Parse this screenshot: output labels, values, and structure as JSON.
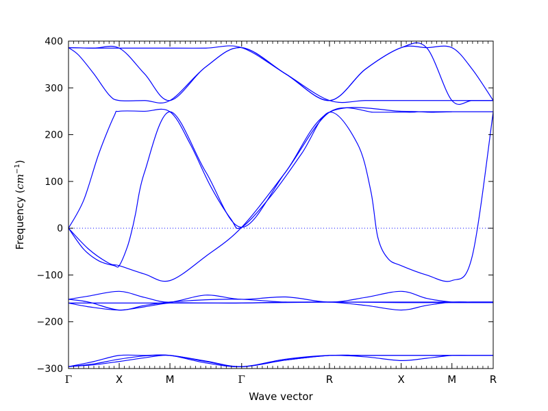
{
  "chart_data": {
    "type": "line",
    "xlabel": "Wave vector",
    "ylabel": "Frequency (",
    "ylabel_unit": "cm",
    "ylabel_exp": "−1",
    "ylabel_close": ")",
    "ylim": [
      -300,
      400
    ],
    "yticks": [
      400,
      300,
      200,
      100,
      0,
      -100,
      -200,
      -300
    ],
    "ytick_labels": [
      "400",
      "300",
      "200",
      "100",
      "0",
      "−100",
      "−200",
      "−300"
    ],
    "high_symmetry_points": [
      {
        "label": "Γ",
        "x": 0.0
      },
      {
        "label": "X",
        "x": 0.5
      },
      {
        "label": "M",
        "x": 1.0
      },
      {
        "label": "Γ",
        "x": 1.707
      },
      {
        "label": "R",
        "x": 2.573
      },
      {
        "label": "X",
        "x": 3.28
      },
      {
        "label": "M",
        "x": 3.78
      },
      {
        "label": "R",
        "x": 4.187
      }
    ],
    "zero_line": true,
    "line_color": "#0000ff",
    "series": [
      {
        "x": [
          0,
          0.25,
          0.5,
          0.75,
          1.0,
          1.354,
          1.707,
          2.14,
          2.573,
          2.927,
          3.28,
          3.53,
          3.78,
          3.98,
          4.187
        ],
        "values": [
          386,
          385,
          385,
          385,
          385,
          385,
          386,
          330,
          273,
          273,
          273,
          273,
          273,
          273,
          273
        ]
      },
      {
        "x": [
          0,
          0.1,
          0.25,
          0.4,
          0.5,
          0.75,
          1.0,
          1.354,
          1.707,
          2.14,
          2.573,
          2.927,
          3.28,
          3.53,
          3.78,
          3.98,
          4.187
        ],
        "values": [
          386,
          370,
          330,
          285,
          273,
          273,
          273,
          345,
          386,
          330,
          273,
          340,
          386,
          386,
          386,
          340,
          273
        ]
      },
      {
        "x": [
          0,
          0.25,
          0.5,
          0.75,
          1.0,
          1.354,
          1.707,
          2.14,
          2.573,
          2.927,
          3.28,
          3.53,
          3.78,
          3.98,
          4.187
        ],
        "values": [
          386,
          385,
          385,
          330,
          273,
          345,
          386,
          330,
          273,
          340,
          386,
          386,
          273,
          273,
          273
        ]
      },
      {
        "x": [
          0,
          0.15,
          0.3,
          0.45,
          0.5,
          0.75,
          1.0,
          1.2,
          1.4,
          1.6,
          1.707,
          2.0,
          2.3,
          2.573,
          2.85,
          2.98,
          3.05,
          3.15,
          3.28,
          3.53,
          3.78,
          3.98,
          4.187
        ],
        "values": [
          0,
          60,
          160,
          240,
          250,
          250,
          249,
          180,
          90,
          20,
          2,
          70,
          160,
          248,
          180,
          80,
          -20,
          -65,
          -80,
          -100,
          -112,
          -60,
          248
        ]
      },
      {
        "x": [
          0,
          0.15,
          0.3,
          0.45,
          0.5,
          0.58,
          0.63,
          0.66,
          0.75,
          1.0,
          1.354,
          1.707,
          2.14,
          2.573,
          3.28,
          3.55,
          3.62,
          3.78
        ],
        "values": [
          0,
          -45,
          -70,
          -80,
          -80,
          -40,
          0,
          30,
          120,
          249,
          120,
          2,
          120,
          248,
          250,
          248,
          248,
          249
        ]
      },
      {
        "x": [
          0,
          0.2,
          0.4,
          0.5,
          0.75,
          1.0,
          1.354,
          1.707,
          2.14,
          2.573,
          3.0,
          3.03,
          3.15,
          3.28,
          3.4,
          3.45,
          3.55,
          3.78,
          3.98,
          4.187
        ],
        "values": [
          0,
          -45,
          -75,
          -80,
          -98,
          -112,
          -60,
          2,
          120,
          248,
          248,
          248,
          248,
          248,
          248,
          249,
          249,
          249,
          249,
          249
        ]
      },
      {
        "x": [
          0,
          0.2,
          0.5,
          0.75,
          1.0,
          1.354,
          1.707,
          2.14,
          2.573,
          2.927,
          3.28,
          3.53,
          3.78,
          3.98,
          4.187
        ],
        "values": [
          -152,
          -145,
          -135,
          -148,
          -158,
          -143,
          -152,
          -147,
          -158,
          -148,
          -135,
          -150,
          -158,
          -158,
          -158
        ]
      },
      {
        "x": [
          0,
          0.2,
          0.5,
          0.75,
          1.0,
          1.354,
          1.707,
          2.14,
          2.573,
          2.927,
          3.28,
          3.53,
          3.78,
          3.98,
          4.187
        ],
        "values": [
          -152,
          -158,
          -175,
          -165,
          -158,
          -153,
          -152,
          -158,
          -158,
          -165,
          -175,
          -165,
          -158,
          -158,
          -158
        ]
      },
      {
        "x": [
          0,
          0.2,
          0.5,
          0.75,
          1.0,
          1.354,
          1.707,
          2.14,
          2.573,
          2.927,
          3.28,
          3.53,
          3.78,
          3.98,
          4.187
        ],
        "values": [
          -160,
          -168,
          -175,
          -168,
          -160,
          -160,
          -160,
          -158,
          -158,
          -158,
          -158,
          -158,
          -158,
          -158,
          -158
        ]
      },
      {
        "x": [
          0,
          0.5,
          1.0,
          1.707,
          2.573,
          3.28,
          3.78,
          4.187
        ],
        "values": [
          -160,
          -160,
          -160,
          -160,
          -158,
          -159,
          -159,
          -159
        ]
      },
      {
        "x": [
          0,
          0.25,
          0.5,
          0.75,
          1.0,
          1.354,
          1.707,
          2.14,
          2.573,
          2.927,
          3.28,
          3.53,
          3.78,
          3.98,
          4.187
        ],
        "values": [
          -296,
          -285,
          -272,
          -272,
          -272,
          -288,
          -296,
          -282,
          -272,
          -272,
          -272,
          -272,
          -272,
          -272,
          -272
        ]
      },
      {
        "x": [
          0,
          0.25,
          0.5,
          0.75,
          1.0,
          1.354,
          1.707,
          2.14,
          2.573,
          2.927,
          3.28,
          3.53,
          3.78,
          3.98,
          4.187
        ],
        "values": [
          -296,
          -292,
          -285,
          -277,
          -272,
          -285,
          -296,
          -280,
          -272,
          -275,
          -283,
          -278,
          -272,
          -272,
          -272
        ]
      },
      {
        "x": [
          0,
          0.25,
          0.5,
          0.75,
          1.0,
          1.354,
          1.707,
          2.14,
          2.573,
          2.927,
          3.28,
          3.53,
          3.78,
          3.98,
          4.187
        ],
        "values": [
          -296,
          -290,
          -280,
          -273,
          -272,
          -284,
          -296,
          -282,
          -272,
          -272,
          -272,
          -272,
          -272,
          -272,
          -272
        ]
      }
    ]
  }
}
